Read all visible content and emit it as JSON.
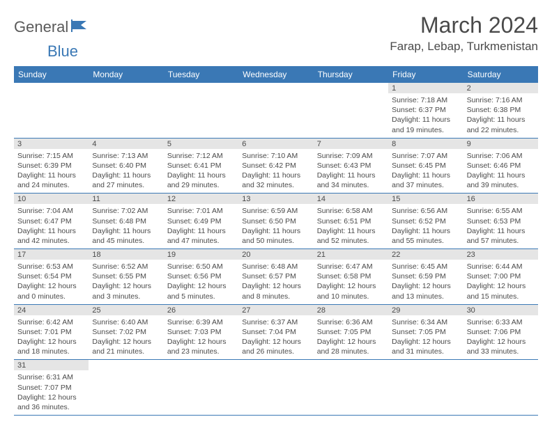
{
  "colors": {
    "header_bg": "#3a78b5",
    "header_text": "#ffffff",
    "logo_gray": "#5a5a5a",
    "logo_blue": "#3a78b5",
    "daynum_bg": "#e5e5e5",
    "text": "#4a4a4a",
    "border": "#3a78b5",
    "page_bg": "#ffffff"
  },
  "logo": {
    "part1": "General",
    "part2": "Blue"
  },
  "title": "March 2024",
  "location": "Farap, Lebap, Turkmenistan",
  "weekdays": [
    "Sunday",
    "Monday",
    "Tuesday",
    "Wednesday",
    "Thursday",
    "Friday",
    "Saturday"
  ],
  "weeks": [
    [
      null,
      null,
      null,
      null,
      null,
      {
        "n": "1",
        "sr": "Sunrise: 7:18 AM",
        "ss": "Sunset: 6:37 PM",
        "d1": "Daylight: 11 hours",
        "d2": "and 19 minutes."
      },
      {
        "n": "2",
        "sr": "Sunrise: 7:16 AM",
        "ss": "Sunset: 6:38 PM",
        "d1": "Daylight: 11 hours",
        "d2": "and 22 minutes."
      }
    ],
    [
      {
        "n": "3",
        "sr": "Sunrise: 7:15 AM",
        "ss": "Sunset: 6:39 PM",
        "d1": "Daylight: 11 hours",
        "d2": "and 24 minutes."
      },
      {
        "n": "4",
        "sr": "Sunrise: 7:13 AM",
        "ss": "Sunset: 6:40 PM",
        "d1": "Daylight: 11 hours",
        "d2": "and 27 minutes."
      },
      {
        "n": "5",
        "sr": "Sunrise: 7:12 AM",
        "ss": "Sunset: 6:41 PM",
        "d1": "Daylight: 11 hours",
        "d2": "and 29 minutes."
      },
      {
        "n": "6",
        "sr": "Sunrise: 7:10 AM",
        "ss": "Sunset: 6:42 PM",
        "d1": "Daylight: 11 hours",
        "d2": "and 32 minutes."
      },
      {
        "n": "7",
        "sr": "Sunrise: 7:09 AM",
        "ss": "Sunset: 6:43 PM",
        "d1": "Daylight: 11 hours",
        "d2": "and 34 minutes."
      },
      {
        "n": "8",
        "sr": "Sunrise: 7:07 AM",
        "ss": "Sunset: 6:45 PM",
        "d1": "Daylight: 11 hours",
        "d2": "and 37 minutes."
      },
      {
        "n": "9",
        "sr": "Sunrise: 7:06 AM",
        "ss": "Sunset: 6:46 PM",
        "d1": "Daylight: 11 hours",
        "d2": "and 39 minutes."
      }
    ],
    [
      {
        "n": "10",
        "sr": "Sunrise: 7:04 AM",
        "ss": "Sunset: 6:47 PM",
        "d1": "Daylight: 11 hours",
        "d2": "and 42 minutes."
      },
      {
        "n": "11",
        "sr": "Sunrise: 7:02 AM",
        "ss": "Sunset: 6:48 PM",
        "d1": "Daylight: 11 hours",
        "d2": "and 45 minutes."
      },
      {
        "n": "12",
        "sr": "Sunrise: 7:01 AM",
        "ss": "Sunset: 6:49 PM",
        "d1": "Daylight: 11 hours",
        "d2": "and 47 minutes."
      },
      {
        "n": "13",
        "sr": "Sunrise: 6:59 AM",
        "ss": "Sunset: 6:50 PM",
        "d1": "Daylight: 11 hours",
        "d2": "and 50 minutes."
      },
      {
        "n": "14",
        "sr": "Sunrise: 6:58 AM",
        "ss": "Sunset: 6:51 PM",
        "d1": "Daylight: 11 hours",
        "d2": "and 52 minutes."
      },
      {
        "n": "15",
        "sr": "Sunrise: 6:56 AM",
        "ss": "Sunset: 6:52 PM",
        "d1": "Daylight: 11 hours",
        "d2": "and 55 minutes."
      },
      {
        "n": "16",
        "sr": "Sunrise: 6:55 AM",
        "ss": "Sunset: 6:53 PM",
        "d1": "Daylight: 11 hours",
        "d2": "and 57 minutes."
      }
    ],
    [
      {
        "n": "17",
        "sr": "Sunrise: 6:53 AM",
        "ss": "Sunset: 6:54 PM",
        "d1": "Daylight: 12 hours",
        "d2": "and 0 minutes."
      },
      {
        "n": "18",
        "sr": "Sunrise: 6:52 AM",
        "ss": "Sunset: 6:55 PM",
        "d1": "Daylight: 12 hours",
        "d2": "and 3 minutes."
      },
      {
        "n": "19",
        "sr": "Sunrise: 6:50 AM",
        "ss": "Sunset: 6:56 PM",
        "d1": "Daylight: 12 hours",
        "d2": "and 5 minutes."
      },
      {
        "n": "20",
        "sr": "Sunrise: 6:48 AM",
        "ss": "Sunset: 6:57 PM",
        "d1": "Daylight: 12 hours",
        "d2": "and 8 minutes."
      },
      {
        "n": "21",
        "sr": "Sunrise: 6:47 AM",
        "ss": "Sunset: 6:58 PM",
        "d1": "Daylight: 12 hours",
        "d2": "and 10 minutes."
      },
      {
        "n": "22",
        "sr": "Sunrise: 6:45 AM",
        "ss": "Sunset: 6:59 PM",
        "d1": "Daylight: 12 hours",
        "d2": "and 13 minutes."
      },
      {
        "n": "23",
        "sr": "Sunrise: 6:44 AM",
        "ss": "Sunset: 7:00 PM",
        "d1": "Daylight: 12 hours",
        "d2": "and 15 minutes."
      }
    ],
    [
      {
        "n": "24",
        "sr": "Sunrise: 6:42 AM",
        "ss": "Sunset: 7:01 PM",
        "d1": "Daylight: 12 hours",
        "d2": "and 18 minutes."
      },
      {
        "n": "25",
        "sr": "Sunrise: 6:40 AM",
        "ss": "Sunset: 7:02 PM",
        "d1": "Daylight: 12 hours",
        "d2": "and 21 minutes."
      },
      {
        "n": "26",
        "sr": "Sunrise: 6:39 AM",
        "ss": "Sunset: 7:03 PM",
        "d1": "Daylight: 12 hours",
        "d2": "and 23 minutes."
      },
      {
        "n": "27",
        "sr": "Sunrise: 6:37 AM",
        "ss": "Sunset: 7:04 PM",
        "d1": "Daylight: 12 hours",
        "d2": "and 26 minutes."
      },
      {
        "n": "28",
        "sr": "Sunrise: 6:36 AM",
        "ss": "Sunset: 7:05 PM",
        "d1": "Daylight: 12 hours",
        "d2": "and 28 minutes."
      },
      {
        "n": "29",
        "sr": "Sunrise: 6:34 AM",
        "ss": "Sunset: 7:05 PM",
        "d1": "Daylight: 12 hours",
        "d2": "and 31 minutes."
      },
      {
        "n": "30",
        "sr": "Sunrise: 6:33 AM",
        "ss": "Sunset: 7:06 PM",
        "d1": "Daylight: 12 hours",
        "d2": "and 33 minutes."
      }
    ],
    [
      {
        "n": "31",
        "sr": "Sunrise: 6:31 AM",
        "ss": "Sunset: 7:07 PM",
        "d1": "Daylight: 12 hours",
        "d2": "and 36 minutes."
      },
      null,
      null,
      null,
      null,
      null,
      null
    ]
  ]
}
